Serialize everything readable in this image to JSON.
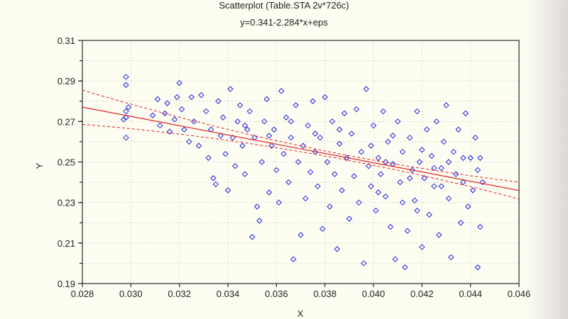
{
  "chart_data": {
    "type": "scatter",
    "title": "Scatterplot (Table.STA 2v*726c)",
    "subtitle": "y=0.341-2.284*x+eps",
    "xlabel": "X",
    "ylabel": "Y",
    "xlim": [
      0.028,
      0.046
    ],
    "ylim": [
      0.19,
      0.31
    ],
    "xticks": [
      "0.028",
      "0.030",
      "0.032",
      "0.034",
      "0.036",
      "0.038",
      "0.040",
      "0.042",
      "0.044",
      "0.046"
    ],
    "yticks": [
      "0.19",
      "0.21",
      "0.23",
      "0.25",
      "0.27",
      "0.29",
      "0.31"
    ],
    "grid": true,
    "marker": "open-diamond",
    "colors": {
      "points": "#2222dd",
      "fit": "#e02020",
      "background": "#fdfdf2"
    },
    "regression": {
      "intercept": 0.341,
      "slope": -2.284,
      "confidence_band": true
    },
    "points": [
      [
        0.0298,
        0.292
      ],
      [
        0.0298,
        0.288
      ],
      [
        0.0298,
        0.262
      ],
      [
        0.0298,
        0.272
      ],
      [
        0.0298,
        0.275
      ],
      [
        0.0299,
        0.277
      ],
      [
        0.0297,
        0.271
      ],
      [
        0.0309,
        0.273
      ],
      [
        0.0311,
        0.281
      ],
      [
        0.0312,
        0.268
      ],
      [
        0.0314,
        0.274
      ],
      [
        0.0315,
        0.279
      ],
      [
        0.0316,
        0.265
      ],
      [
        0.0318,
        0.271
      ],
      [
        0.0319,
        0.282
      ],
      [
        0.032,
        0.289
      ],
      [
        0.0321,
        0.276
      ],
      [
        0.0322,
        0.266
      ],
      [
        0.0324,
        0.26
      ],
      [
        0.0325,
        0.282
      ],
      [
        0.0326,
        0.27
      ],
      [
        0.0328,
        0.258
      ],
      [
        0.0329,
        0.283
      ],
      [
        0.0331,
        0.275
      ],
      [
        0.0332,
        0.252
      ],
      [
        0.0333,
        0.266
      ],
      [
        0.0334,
        0.242
      ],
      [
        0.0335,
        0.239
      ],
      [
        0.0336,
        0.28
      ],
      [
        0.0337,
        0.263
      ],
      [
        0.0338,
        0.272
      ],
      [
        0.0339,
        0.254
      ],
      [
        0.034,
        0.236
      ],
      [
        0.0341,
        0.286
      ],
      [
        0.0342,
        0.262
      ],
      [
        0.0343,
        0.248
      ],
      [
        0.0344,
        0.27
      ],
      [
        0.0345,
        0.278
      ],
      [
        0.0346,
        0.258
      ],
      [
        0.0347,
        0.244
      ],
      [
        0.0348,
        0.266
      ],
      [
        0.0349,
        0.275
      ],
      [
        0.035,
        0.213
      ],
      [
        0.0351,
        0.262
      ],
      [
        0.0352,
        0.228
      ],
      [
        0.0353,
        0.221
      ],
      [
        0.0354,
        0.25
      ],
      [
        0.0355,
        0.27
      ],
      [
        0.0356,
        0.281
      ],
      [
        0.0357,
        0.235
      ],
      [
        0.0358,
        0.258
      ],
      [
        0.0359,
        0.266
      ],
      [
        0.036,
        0.246
      ],
      [
        0.0361,
        0.23
      ],
      [
        0.0362,
        0.285
      ],
      [
        0.0363,
        0.254
      ],
      [
        0.0364,
        0.272
      ],
      [
        0.0365,
        0.24
      ],
      [
        0.0366,
        0.262
      ],
      [
        0.0367,
        0.202
      ],
      [
        0.0368,
        0.278
      ],
      [
        0.0369,
        0.25
      ],
      [
        0.037,
        0.214
      ],
      [
        0.0371,
        0.258
      ],
      [
        0.0372,
        0.232
      ],
      [
        0.0373,
        0.268
      ],
      [
        0.0374,
        0.245
      ],
      [
        0.0375,
        0.28
      ],
      [
        0.0376,
        0.255
      ],
      [
        0.0377,
        0.238
      ],
      [
        0.0378,
        0.262
      ],
      [
        0.0379,
        0.217
      ],
      [
        0.038,
        0.282
      ],
      [
        0.0381,
        0.25
      ],
      [
        0.0382,
        0.228
      ],
      [
        0.0383,
        0.27
      ],
      [
        0.0384,
        0.244
      ],
      [
        0.0385,
        0.207
      ],
      [
        0.0386,
        0.259
      ],
      [
        0.0387,
        0.236
      ],
      [
        0.0388,
        0.274
      ],
      [
        0.0389,
        0.252
      ],
      [
        0.039,
        0.222
      ],
      [
        0.0391,
        0.264
      ],
      [
        0.0392,
        0.243
      ],
      [
        0.0393,
        0.276
      ],
      [
        0.0394,
        0.23
      ],
      [
        0.0395,
        0.255
      ],
      [
        0.0396,
        0.2
      ],
      [
        0.0397,
        0.286
      ],
      [
        0.0398,
        0.248
      ],
      [
        0.0399,
        0.238
      ],
      [
        0.04,
        0.268
      ],
      [
        0.0401,
        0.226
      ],
      [
        0.0402,
        0.252
      ],
      [
        0.0403,
        0.244
      ],
      [
        0.0404,
        0.275
      ],
      [
        0.0405,
        0.233
      ],
      [
        0.0406,
        0.26
      ],
      [
        0.0407,
        0.218
      ],
      [
        0.0408,
        0.249
      ],
      [
        0.0409,
        0.202
      ],
      [
        0.041,
        0.27
      ],
      [
        0.0411,
        0.24
      ],
      [
        0.0412,
        0.255
      ],
      [
        0.0413,
        0.198
      ],
      [
        0.0414,
        0.216
      ],
      [
        0.0415,
        0.262
      ],
      [
        0.0416,
        0.246
      ],
      [
        0.0417,
        0.231
      ],
      [
        0.0418,
        0.275
      ],
      [
        0.0419,
        0.25
      ],
      [
        0.042,
        0.208
      ],
      [
        0.0421,
        0.242
      ],
      [
        0.0422,
        0.266
      ],
      [
        0.0423,
        0.224
      ],
      [
        0.0424,
        0.253
      ],
      [
        0.0425,
        0.238
      ],
      [
        0.0426,
        0.27
      ],
      [
        0.0427,
        0.214
      ],
      [
        0.0428,
        0.247
      ],
      [
        0.0429,
        0.26
      ],
      [
        0.043,
        0.278
      ],
      [
        0.0431,
        0.232
      ],
      [
        0.0432,
        0.203
      ],
      [
        0.0433,
        0.255
      ],
      [
        0.0434,
        0.244
      ],
      [
        0.0435,
        0.266
      ],
      [
        0.0436,
        0.22
      ],
      [
        0.0437,
        0.24
      ],
      [
        0.0438,
        0.274
      ],
      [
        0.0439,
        0.228
      ],
      [
        0.044,
        0.252
      ],
      [
        0.0441,
        0.236
      ],
      [
        0.0442,
        0.262
      ],
      [
        0.0443,
        0.198
      ],
      [
        0.0443,
        0.246
      ],
      [
        0.0444,
        0.218
      ],
      [
        0.0444,
        0.252
      ],
      [
        0.0445,
        0.24
      ],
      [
        0.0402,
        0.235
      ],
      [
        0.0408,
        0.263
      ],
      [
        0.0415,
        0.242
      ],
      [
        0.042,
        0.256
      ],
      [
        0.0425,
        0.247
      ],
      [
        0.0431,
        0.25
      ],
      [
        0.0437,
        0.252
      ],
      [
        0.0412,
        0.23
      ],
      [
        0.0418,
        0.226
      ],
      [
        0.0428,
        0.238
      ],
      [
        0.0405,
        0.25
      ],
      [
        0.0399,
        0.258
      ],
      [
        0.0386,
        0.266
      ],
      [
        0.0376,
        0.264
      ],
      [
        0.0366,
        0.27
      ],
      [
        0.0357,
        0.263
      ],
      [
        0.0347,
        0.268
      ]
    ]
  }
}
